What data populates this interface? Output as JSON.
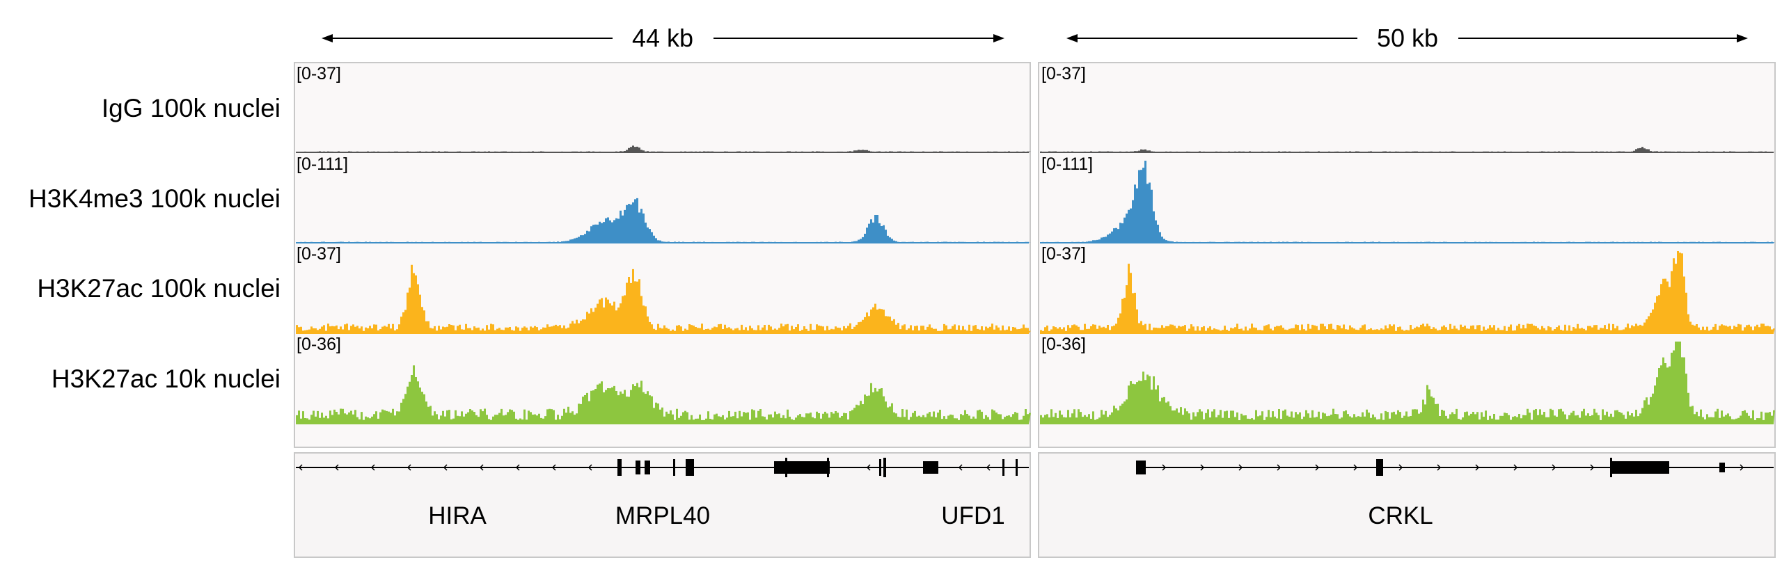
{
  "regions": [
    {
      "id": "left",
      "size_label": "44 kb",
      "genes": [
        "HIRA",
        "MRPL40",
        "UFD1"
      ]
    },
    {
      "id": "right",
      "size_label": "50 kb",
      "genes": [
        "CRKL"
      ]
    }
  ],
  "tracks": [
    {
      "name": "IgG 100k nuclei",
      "color": "#555555",
      "ranges": [
        "[0-37]",
        "[0-37]"
      ]
    },
    {
      "name": "H3K4me3 100k nuclei",
      "color": "#3e8fc7",
      "ranges": [
        "[0-111]",
        "[0-111]"
      ]
    },
    {
      "name": "H3K27ac 100k nuclei",
      "color": "#fbb41c",
      "ranges": [
        "[0-37]",
        "[0-37]"
      ]
    },
    {
      "name": "H3K27ac 10k nuclei",
      "color": "#8dc63f",
      "ranges": [
        "[0-36]",
        "[0-36]"
      ]
    }
  ],
  "colors": {
    "panel_bg": "#faf8f8",
    "panel_border": "#c8c8c8",
    "gene": "#000000"
  }
}
